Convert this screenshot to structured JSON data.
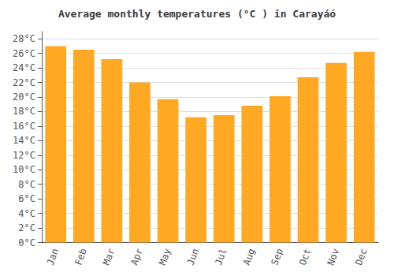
{
  "chart_data": {
    "type": "bar",
    "title": "Average monthly temperatures (°C ) in Carayáó",
    "categories": [
      "Jan",
      "Feb",
      "Mar",
      "Apr",
      "May",
      "Jun",
      "Jul",
      "Aug",
      "Sep",
      "Oct",
      "Nov",
      "Dec"
    ],
    "values": [
      27.0,
      26.5,
      25.2,
      22.0,
      19.7,
      17.2,
      17.5,
      18.8,
      20.1,
      22.7,
      24.7,
      26.2
    ],
    "color": "#FFA824",
    "ylim": [
      0,
      29
    ],
    "yticks": [
      {
        "value": 0,
        "label": "0°C"
      },
      {
        "value": 2,
        "label": "2°C"
      },
      {
        "value": 4,
        "label": "4°C"
      },
      {
        "value": 6,
        "label": "6°C"
      },
      {
        "value": 8,
        "label": "8°C"
      },
      {
        "value": 10,
        "label": "10°C"
      },
      {
        "value": 12,
        "label": "12°C"
      },
      {
        "value": 14,
        "label": "14°C"
      },
      {
        "value": 16,
        "label": "16°C"
      },
      {
        "value": 18,
        "label": "18°C"
      },
      {
        "value": 20,
        "label": "20°C"
      },
      {
        "value": 22,
        "label": "22°C"
      },
      {
        "value": 24,
        "label": "24°C"
      },
      {
        "value": 26,
        "label": "26°C"
      },
      {
        "value": 28,
        "label": "28°C"
      }
    ],
    "grid": true
  }
}
